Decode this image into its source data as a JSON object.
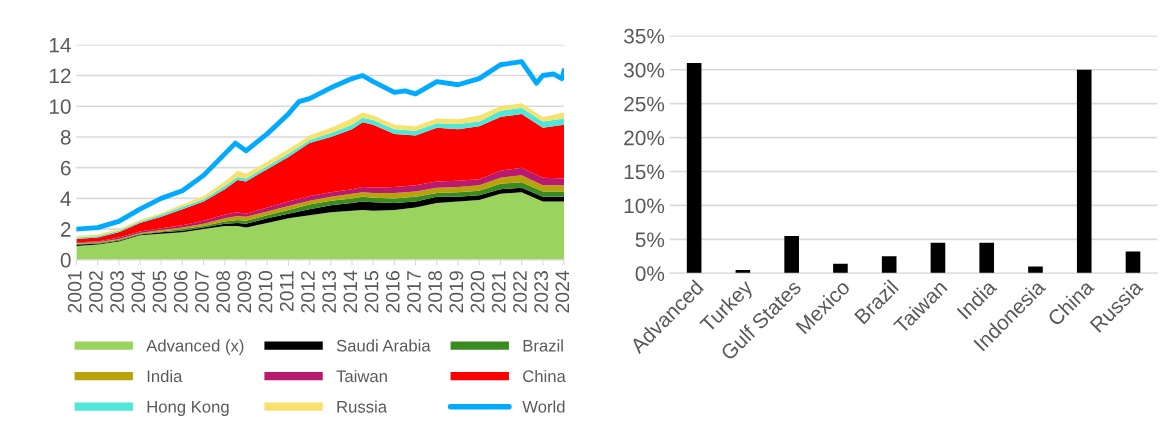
{
  "chart_data": [
    {
      "type": "area",
      "stacked": true,
      "grid": "y",
      "legend": "bottom",
      "x": [
        2001,
        2002,
        2003,
        2004,
        2005,
        2006,
        2007,
        2008,
        2008.6,
        2009,
        2010,
        2011,
        2012,
        2013,
        2014,
        2014.5,
        2015,
        2016,
        2017,
        2018,
        2019,
        2020,
        2021,
        2022,
        2023,
        2024
      ],
      "xlim": [
        2001,
        2024
      ],
      "xticks": [
        2001,
        2002,
        2003,
        2004,
        2005,
        2006,
        2007,
        2008,
        2009,
        2010,
        2011,
        2012,
        2013,
        2014,
        2015,
        2016,
        2017,
        2018,
        2019,
        2020,
        2021,
        2022,
        2023,
        2024
      ],
      "ylim": [
        0,
        14
      ],
      "yticks": [
        0,
        2,
        4,
        6,
        8,
        10,
        12,
        14
      ],
      "series": [
        {
          "name": "Advanced (x)",
          "color": "#9bd35f",
          "values": [
            0.9,
            1.0,
            1.2,
            1.6,
            1.7,
            1.8,
            2.0,
            2.2,
            2.2,
            2.1,
            2.4,
            2.7,
            2.9,
            3.1,
            3.2,
            3.25,
            3.2,
            3.25,
            3.4,
            3.7,
            3.8,
            3.9,
            4.3,
            4.4,
            3.8,
            3.8
          ]
        },
        {
          "name": "Saudi Arabia",
          "color": "#000000",
          "values": [
            0.1,
            0.05,
            0.05,
            0.05,
            0.1,
            0.1,
            0.1,
            0.15,
            0.2,
            0.25,
            0.3,
            0.3,
            0.4,
            0.45,
            0.5,
            0.55,
            0.55,
            0.45,
            0.4,
            0.4,
            0.3,
            0.3,
            0.3,
            0.3,
            0.3,
            0.3
          ]
        },
        {
          "name": "Brazil",
          "color": "#3a8c22",
          "values": [
            0.05,
            0.05,
            0.05,
            0.05,
            0.05,
            0.1,
            0.1,
            0.15,
            0.2,
            0.2,
            0.2,
            0.25,
            0.3,
            0.3,
            0.3,
            0.3,
            0.3,
            0.3,
            0.3,
            0.25,
            0.3,
            0.3,
            0.35,
            0.35,
            0.35,
            0.35
          ]
        },
        {
          "name": "India",
          "color": "#b8a40a",
          "values": [
            0.05,
            0.05,
            0.05,
            0.05,
            0.1,
            0.1,
            0.15,
            0.2,
            0.25,
            0.25,
            0.25,
            0.25,
            0.25,
            0.25,
            0.3,
            0.3,
            0.3,
            0.35,
            0.35,
            0.35,
            0.35,
            0.35,
            0.4,
            0.45,
            0.4,
            0.4
          ]
        },
        {
          "name": "Taiwan",
          "color": "#b81a6e",
          "values": [
            0.05,
            0.05,
            0.1,
            0.1,
            0.1,
            0.15,
            0.2,
            0.25,
            0.25,
            0.2,
            0.25,
            0.3,
            0.3,
            0.3,
            0.3,
            0.35,
            0.35,
            0.4,
            0.4,
            0.4,
            0.4,
            0.4,
            0.45,
            0.5,
            0.5,
            0.45
          ]
        },
        {
          "name": "China",
          "color": "#ff0000",
          "values": [
            0.2,
            0.25,
            0.35,
            0.55,
            0.75,
            1.05,
            1.25,
            1.65,
            2.1,
            2.1,
            2.5,
            2.9,
            3.45,
            3.6,
            3.9,
            4.2,
            4.1,
            3.45,
            3.25,
            3.5,
            3.35,
            3.45,
            3.5,
            3.5,
            3.25,
            3.5
          ]
        },
        {
          "name": "Hong Kong",
          "color": "#4fe8d8",
          "values": [
            0.1,
            0.1,
            0.1,
            0.1,
            0.15,
            0.15,
            0.15,
            0.2,
            0.2,
            0.2,
            0.2,
            0.2,
            0.2,
            0.25,
            0.3,
            0.3,
            0.3,
            0.3,
            0.3,
            0.3,
            0.35,
            0.3,
            0.4,
            0.4,
            0.4,
            0.4
          ]
        },
        {
          "name": "Russia",
          "color": "#f8e26e",
          "values": [
            0.1,
            0.1,
            0.1,
            0.1,
            0.1,
            0.15,
            0.2,
            0.3,
            0.4,
            0.3,
            0.3,
            0.3,
            0.3,
            0.35,
            0.4,
            0.35,
            0.3,
            0.3,
            0.3,
            0.3,
            0.3,
            0.4,
            0.3,
            0.3,
            0.3,
            0.4
          ]
        },
        {
          "name": "World",
          "type": "line",
          "color": "#00aaff",
          "x": [
            2001,
            2002,
            2003,
            2004,
            2005,
            2006,
            2007,
            2008,
            2008.5,
            2009,
            2010,
            2011,
            2011.5,
            2012,
            2013,
            2014,
            2014.5,
            2015,
            2016,
            2016.5,
            2017,
            2018,
            2019,
            2020,
            2021,
            2022,
            2022.7,
            2023,
            2023.5,
            2023.9,
            2024
          ],
          "values": [
            2.0,
            2.1,
            2.5,
            3.3,
            4.0,
            4.5,
            5.5,
            6.9,
            7.6,
            7.1,
            8.2,
            9.5,
            10.3,
            10.5,
            11.2,
            11.8,
            12.0,
            11.6,
            10.9,
            11.0,
            10.8,
            11.6,
            11.4,
            11.8,
            12.7,
            12.9,
            11.5,
            12.0,
            12.1,
            11.8,
            12.3
          ]
        }
      ]
    },
    {
      "type": "bar",
      "grid": "y",
      "categories": [
        "Advanced",
        "Turkey",
        "Gulf States",
        "Mexico",
        "Brazil",
        "Taiwan",
        "India",
        "Indonesia",
        "China",
        "Russia"
      ],
      "values": [
        31,
        0.5,
        5.5,
        1.4,
        2.5,
        4.5,
        4.5,
        1.0,
        30,
        3.2
      ],
      "color": "#000000",
      "ylim": [
        0,
        35
      ],
      "yticks": [
        {
          "value": 0,
          "label": "0%"
        },
        {
          "value": 5,
          "label": "5%"
        },
        {
          "value": 10,
          "label": "10%"
        },
        {
          "value": 15,
          "label": "15%"
        },
        {
          "value": 20,
          "label": "20%"
        },
        {
          "value": 25,
          "label": "25%"
        },
        {
          "value": 30,
          "label": "30%"
        },
        {
          "value": 35,
          "label": "35%"
        }
      ]
    }
  ]
}
